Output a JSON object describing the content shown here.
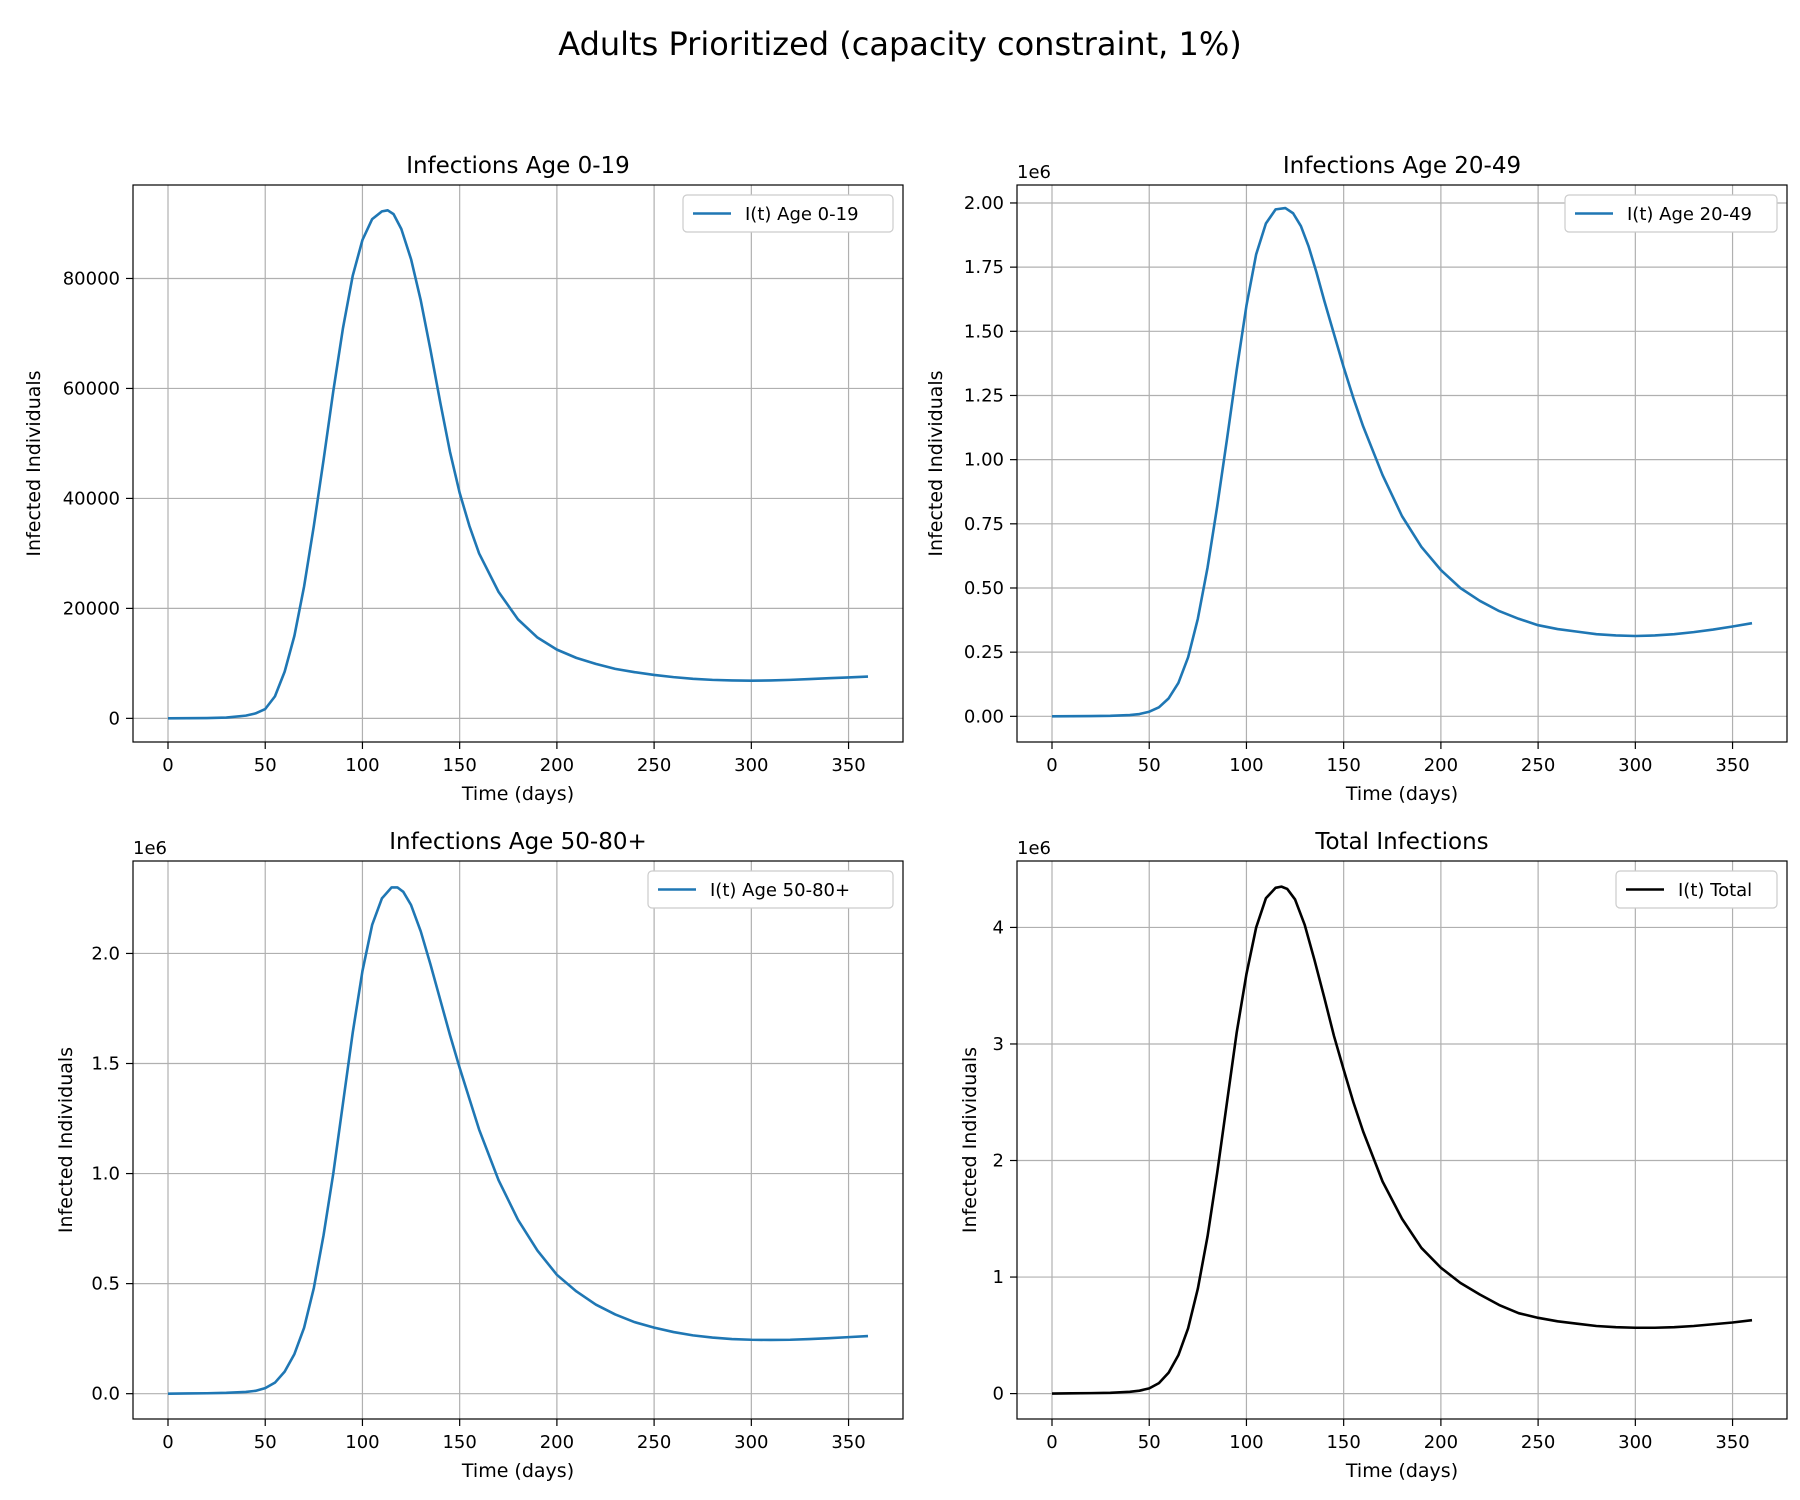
{
  "title": "Adults Prioritized (capacity constraint, 1%)",
  "chart_data": [
    {
      "type": "line",
      "title": "Infections Age 0-19",
      "xlabel": "Time (days)",
      "ylabel": "Infected Individuals",
      "xlim": [
        -18,
        378
      ],
      "ylim": [
        -4300,
        97000
      ],
      "xticks": [
        0,
        50,
        100,
        150,
        200,
        250,
        300,
        350
      ],
      "yticks": [
        0,
        20000,
        40000,
        60000,
        80000
      ],
      "ytick_labels": [
        "0",
        "20000",
        "40000",
        "60000",
        "80000"
      ],
      "offset_text": "",
      "grid": true,
      "legend": "upper right",
      "series": [
        {
          "name": "I(t) Age 0-19",
          "color": "#1f77b4",
          "x": [
            0,
            10,
            20,
            30,
            40,
            45,
            50,
            55,
            60,
            65,
            70,
            75,
            80,
            85,
            90,
            95,
            100,
            105,
            110,
            113,
            116,
            120,
            125,
            130,
            135,
            140,
            145,
            150,
            155,
            160,
            170,
            180,
            190,
            200,
            210,
            220,
            230,
            240,
            250,
            260,
            270,
            280,
            290,
            300,
            310,
            320,
            330,
            340,
            350,
            360
          ],
          "y": [
            0,
            30,
            60,
            150,
            500,
            900,
            1700,
            4000,
            8500,
            15000,
            24000,
            35000,
            47000,
            59500,
            71000,
            80500,
            87000,
            90800,
            92200,
            92400,
            91700,
            89000,
            83500,
            76000,
            67000,
            57500,
            48500,
            41000,
            35000,
            30000,
            23000,
            18000,
            14700,
            12500,
            11000,
            9900,
            9000,
            8400,
            7900,
            7500,
            7200,
            7000,
            6900,
            6850,
            6900,
            7000,
            7150,
            7300,
            7450,
            7600
          ]
        }
      ]
    },
    {
      "type": "line",
      "title": "Infections Age 20-49",
      "xlabel": "Time (days)",
      "ylabel": "Infected Individuals",
      "xlim": [
        -18,
        378
      ],
      "ylim": [
        -100000,
        2070000
      ],
      "xticks": [
        0,
        50,
        100,
        150,
        200,
        250,
        300,
        350
      ],
      "yticks": [
        0,
        250000,
        500000,
        750000,
        1000000,
        1250000,
        1500000,
        1750000,
        2000000
      ],
      "ytick_labels": [
        "0.00",
        "0.25",
        "0.50",
        "0.75",
        "1.00",
        "1.25",
        "1.50",
        "1.75",
        "2.00"
      ],
      "offset_text": "1e6",
      "grid": true,
      "legend": "upper right",
      "series": [
        {
          "name": "I(t) Age 20-49",
          "color": "#1f77b4",
          "x": [
            0,
            10,
            20,
            30,
            40,
            45,
            50,
            55,
            60,
            65,
            70,
            75,
            80,
            85,
            90,
            95,
            100,
            105,
            110,
            115,
            120,
            124,
            128,
            132,
            136,
            140,
            145,
            150,
            155,
            160,
            170,
            180,
            190,
            200,
            210,
            220,
            230,
            240,
            250,
            260,
            270,
            280,
            290,
            300,
            310,
            320,
            330,
            340,
            350,
            360
          ],
          "y": [
            0,
            500,
            1000,
            2000,
            5000,
            9000,
            18000,
            35000,
            70000,
            130000,
            230000,
            380000,
            580000,
            820000,
            1080000,
            1350000,
            1600000,
            1800000,
            1920000,
            1975000,
            1980000,
            1960000,
            1910000,
            1830000,
            1730000,
            1620000,
            1490000,
            1360000,
            1240000,
            1130000,
            940000,
            780000,
            660000,
            570000,
            500000,
            450000,
            410000,
            380000,
            355000,
            340000,
            330000,
            320000,
            315000,
            313000,
            315000,
            320000,
            328000,
            338000,
            350000,
            363000
          ]
        }
      ]
    },
    {
      "type": "line",
      "title": "Infections Age 50-80+",
      "xlabel": "Time (days)",
      "ylabel": "Infected Individuals",
      "xlim": [
        -18,
        378
      ],
      "ylim": [
        -115000,
        2420000
      ],
      "xticks": [
        0,
        50,
        100,
        150,
        200,
        250,
        300,
        350
      ],
      "yticks": [
        0,
        500000,
        1000000,
        1500000,
        2000000
      ],
      "ytick_labels": [
        "0.0",
        "0.5",
        "1.0",
        "1.5",
        "2.0"
      ],
      "offset_text": "1e6",
      "grid": true,
      "legend": "upper right",
      "series": [
        {
          "name": "I(t) Age 50-80+",
          "color": "#1f77b4",
          "x": [
            0,
            10,
            20,
            30,
            40,
            45,
            50,
            55,
            60,
            65,
            70,
            75,
            80,
            85,
            90,
            95,
            100,
            105,
            110,
            115,
            118,
            121,
            125,
            130,
            135,
            140,
            145,
            150,
            155,
            160,
            170,
            180,
            190,
            200,
            210,
            220,
            230,
            240,
            250,
            260,
            270,
            280,
            290,
            300,
            310,
            320,
            330,
            340,
            350,
            360
          ],
          "y": [
            0,
            1000,
            2000,
            4000,
            8000,
            13000,
            25000,
            50000,
            100000,
            180000,
            300000,
            480000,
            720000,
            1000000,
            1320000,
            1640000,
            1920000,
            2130000,
            2250000,
            2300000,
            2300000,
            2280000,
            2220000,
            2100000,
            1950000,
            1790000,
            1630000,
            1480000,
            1340000,
            1200000,
            970000,
            790000,
            650000,
            540000,
            465000,
            405000,
            360000,
            325000,
            300000,
            280000,
            265000,
            255000,
            248000,
            245000,
            244000,
            245000,
            248000,
            252000,
            257000,
            262000
          ]
        }
      ]
    },
    {
      "type": "line",
      "title": "Total Infections",
      "xlabel": "Time (days)",
      "ylabel": "Infected Individuals",
      "xlim": [
        -18,
        378
      ],
      "ylim": [
        -218000,
        4570000
      ],
      "xticks": [
        0,
        50,
        100,
        150,
        200,
        250,
        300,
        350
      ],
      "yticks": [
        0,
        1000000,
        2000000,
        3000000,
        4000000
      ],
      "ytick_labels": [
        "0",
        "1",
        "2",
        "3",
        "4"
      ],
      "offset_text": "1e6",
      "grid": true,
      "legend": "upper right",
      "series": [
        {
          "name": "I(t) Total",
          "color": "#000000",
          "x": [
            0,
            10,
            20,
            30,
            40,
            45,
            50,
            55,
            60,
            65,
            70,
            75,
            80,
            85,
            90,
            95,
            100,
            105,
            110,
            115,
            118,
            121,
            125,
            130,
            135,
            140,
            145,
            150,
            155,
            160,
            170,
            180,
            190,
            200,
            210,
            220,
            230,
            240,
            250,
            260,
            270,
            280,
            290,
            300,
            310,
            320,
            330,
            340,
            350,
            360
          ],
          "y": [
            0,
            2000,
            4000,
            7000,
            15000,
            25000,
            45000,
            90000,
            180000,
            330000,
            560000,
            900000,
            1350000,
            1900000,
            2500000,
            3100000,
            3600000,
            4000000,
            4250000,
            4340000,
            4350000,
            4330000,
            4240000,
            4020000,
            3720000,
            3400000,
            3070000,
            2780000,
            2500000,
            2250000,
            1820000,
            1500000,
            1250000,
            1080000,
            950000,
            850000,
            760000,
            690000,
            650000,
            620000,
            600000,
            580000,
            570000,
            565000,
            565000,
            570000,
            580000,
            595000,
            610000,
            630000
          ]
        }
      ]
    }
  ]
}
